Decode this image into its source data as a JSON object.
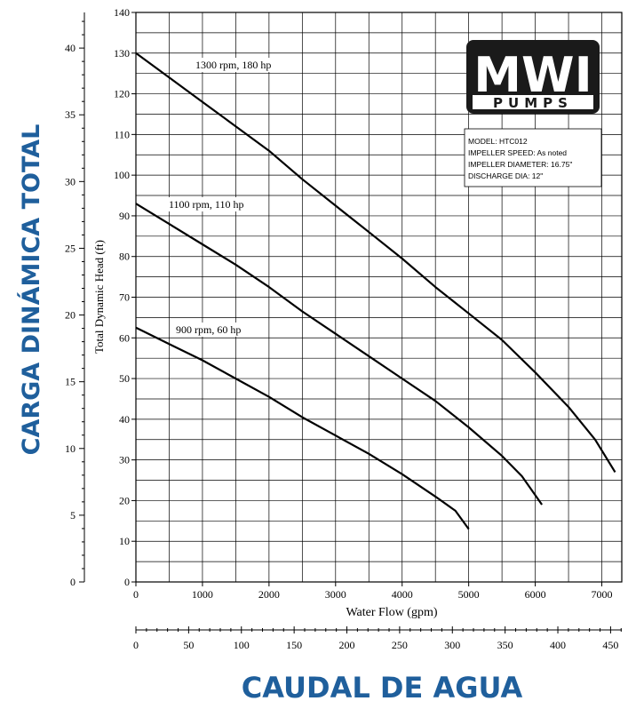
{
  "chart_data": {
    "type": "line",
    "title": "",
    "xlabel": "Water Flow (gpm)",
    "ylabel": "Total Dynamic Head (ft)",
    "xlim": [
      0,
      7300
    ],
    "ylim": [
      0,
      140
    ],
    "grid": true,
    "x_ticks": [
      "0",
      "1000",
      "2000",
      "3000",
      "4000",
      "5000",
      "6000",
      "7000"
    ],
    "y_ticks": [
      "0",
      "10",
      "20",
      "30",
      "40",
      "50",
      "60",
      "70",
      "80",
      "90",
      "100",
      "110",
      "120",
      "130",
      "140"
    ],
    "series": [
      {
        "name": "1300 rpm, 180 hp",
        "x": [
          0,
          500,
          1000,
          1500,
          2000,
          2500,
          3000,
          3500,
          4000,
          4500,
          5000,
          5500,
          6000,
          6500,
          6900,
          7200
        ],
        "y": [
          130,
          124,
          118,
          112,
          106,
          99,
          92.5,
          86,
          79.5,
          72.5,
          66,
          59.5,
          51.5,
          43,
          35,
          27
        ]
      },
      {
        "name": "1100 rpm, 110 hp",
        "x": [
          0,
          500,
          1000,
          1500,
          2000,
          2500,
          3000,
          3500,
          4000,
          4500,
          5000,
          5500,
          5800,
          6100
        ],
        "y": [
          93,
          88,
          83,
          78,
          72.5,
          66.5,
          61,
          55.5,
          50,
          44.5,
          38,
          31,
          26,
          19
        ]
      },
      {
        "name": "900 rpm, 60 hp",
        "x": [
          0,
          500,
          1000,
          1500,
          2000,
          2500,
          3000,
          3500,
          4000,
          4500,
          4800,
          5000
        ],
        "y": [
          62.5,
          58.5,
          54.5,
          50,
          45.5,
          40.5,
          36,
          31.5,
          26.5,
          21,
          17.5,
          13
        ]
      }
    ],
    "secondary_y": {
      "label": "CARGA DINÁMICA TOTAL",
      "lim": [
        0,
        42.67
      ],
      "ticks": [
        "0",
        "5",
        "10",
        "15",
        "20",
        "25",
        "30",
        "35",
        "40"
      ]
    },
    "secondary_x": {
      "label": "CAUDAL DE AGUA",
      "lim": [
        0,
        460.6
      ],
      "ticks": [
        "0",
        "50",
        "100",
        "150",
        "200",
        "250",
        "300",
        "350",
        "400",
        "450"
      ]
    }
  },
  "logo": {
    "text_top": "MWI",
    "text_bottom": "PUMPS"
  },
  "info_box": {
    "model": "MODEL:  HTC012",
    "speed": "IMPELLER SPEED:  As noted",
    "diameter": "IMPELLER DIAMETER:  16.75\"",
    "discharge": "DISCHARGE DIA:  12\""
  },
  "colors": {
    "accent_label": "#1f5f9c",
    "line": "#000000",
    "grid": "#000000",
    "logo_bg": "#1a1a1a"
  }
}
